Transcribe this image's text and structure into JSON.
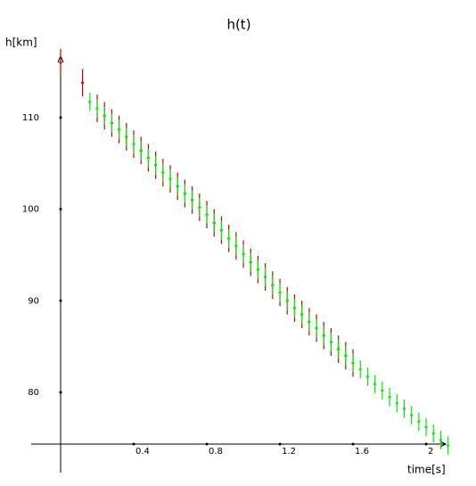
{
  "chart_data": {
    "type": "errorbar",
    "title": "h(t)",
    "y_label": "h[km]",
    "x_label": "time[s]",
    "xlim": [
      -0.161,
      2.107
    ],
    "ylim": [
      74.35,
      116.7
    ],
    "xticks": [
      0.4,
      0.8,
      1.2,
      1.6,
      2
    ],
    "yticks": [
      80,
      90,
      100,
      110
    ],
    "series": [
      {
        "color": "#cc0000",
        "error": 1.5,
        "x": [
          0,
          0.12,
          0.2,
          0.24,
          0.28,
          0.32,
          0.36,
          0.4,
          0.44,
          0.48,
          0.52,
          0.56,
          0.6,
          0.64,
          0.68,
          0.72,
          0.76,
          0.8,
          0.84,
          0.88,
          0.92,
          0.96,
          1.0,
          1.04,
          1.08,
          1.12,
          1.16,
          1.2,
          1.24,
          1.28,
          1.32,
          1.36,
          1.4,
          1.44,
          1.48,
          1.52,
          1.56,
          1.6
        ],
        "values": [
          116,
          113.8,
          111.0,
          110.2,
          109.4,
          108.7,
          107.9,
          107.1,
          106.4,
          105.6,
          104.8,
          104.0,
          103.3,
          102.5,
          101.7,
          101.0,
          100.2,
          99.4,
          98.5,
          97.7,
          96.8,
          96.0,
          95.1,
          94.2,
          93.4,
          92.6,
          91.7,
          90.9,
          90.0,
          89.2,
          88.5,
          87.7,
          87.0,
          86.2,
          85.5,
          84.7,
          84.0,
          83.2
        ]
      },
      {
        "color": "#00ee00",
        "error": 1,
        "x": [
          0.16,
          0.2,
          0.24,
          0.28,
          0.32,
          0.36,
          0.4,
          0.44,
          0.48,
          0.52,
          0.56,
          0.6,
          0.64,
          0.68,
          0.72,
          0.76,
          0.8,
          0.84,
          0.88,
          0.92,
          0.96,
          1.0,
          1.04,
          1.08,
          1.12,
          1.16,
          1.2,
          1.24,
          1.28,
          1.32,
          1.36,
          1.4,
          1.44,
          1.48,
          1.52,
          1.56,
          1.6,
          1.64,
          1.68,
          1.72,
          1.76,
          1.8,
          1.84,
          1.88,
          1.92,
          1.96,
          2.0,
          2.04,
          2.08,
          2.12
        ],
        "values": [
          111.7,
          111.0,
          110.2,
          109.4,
          108.7,
          107.9,
          107.1,
          106.4,
          105.6,
          104.8,
          104.0,
          103.3,
          102.5,
          101.7,
          101.0,
          100.2,
          99.4,
          98.5,
          97.7,
          96.8,
          96.0,
          95.1,
          94.2,
          93.4,
          92.6,
          91.7,
          90.9,
          90.0,
          89.2,
          88.5,
          87.7,
          87.0,
          86.2,
          85.5,
          84.7,
          84.0,
          83.2,
          82.5,
          81.7,
          80.9,
          80.2,
          79.5,
          78.8,
          78.2,
          77.5,
          76.8,
          76.2,
          75.5,
          74.8,
          74.2
        ]
      }
    ]
  }
}
